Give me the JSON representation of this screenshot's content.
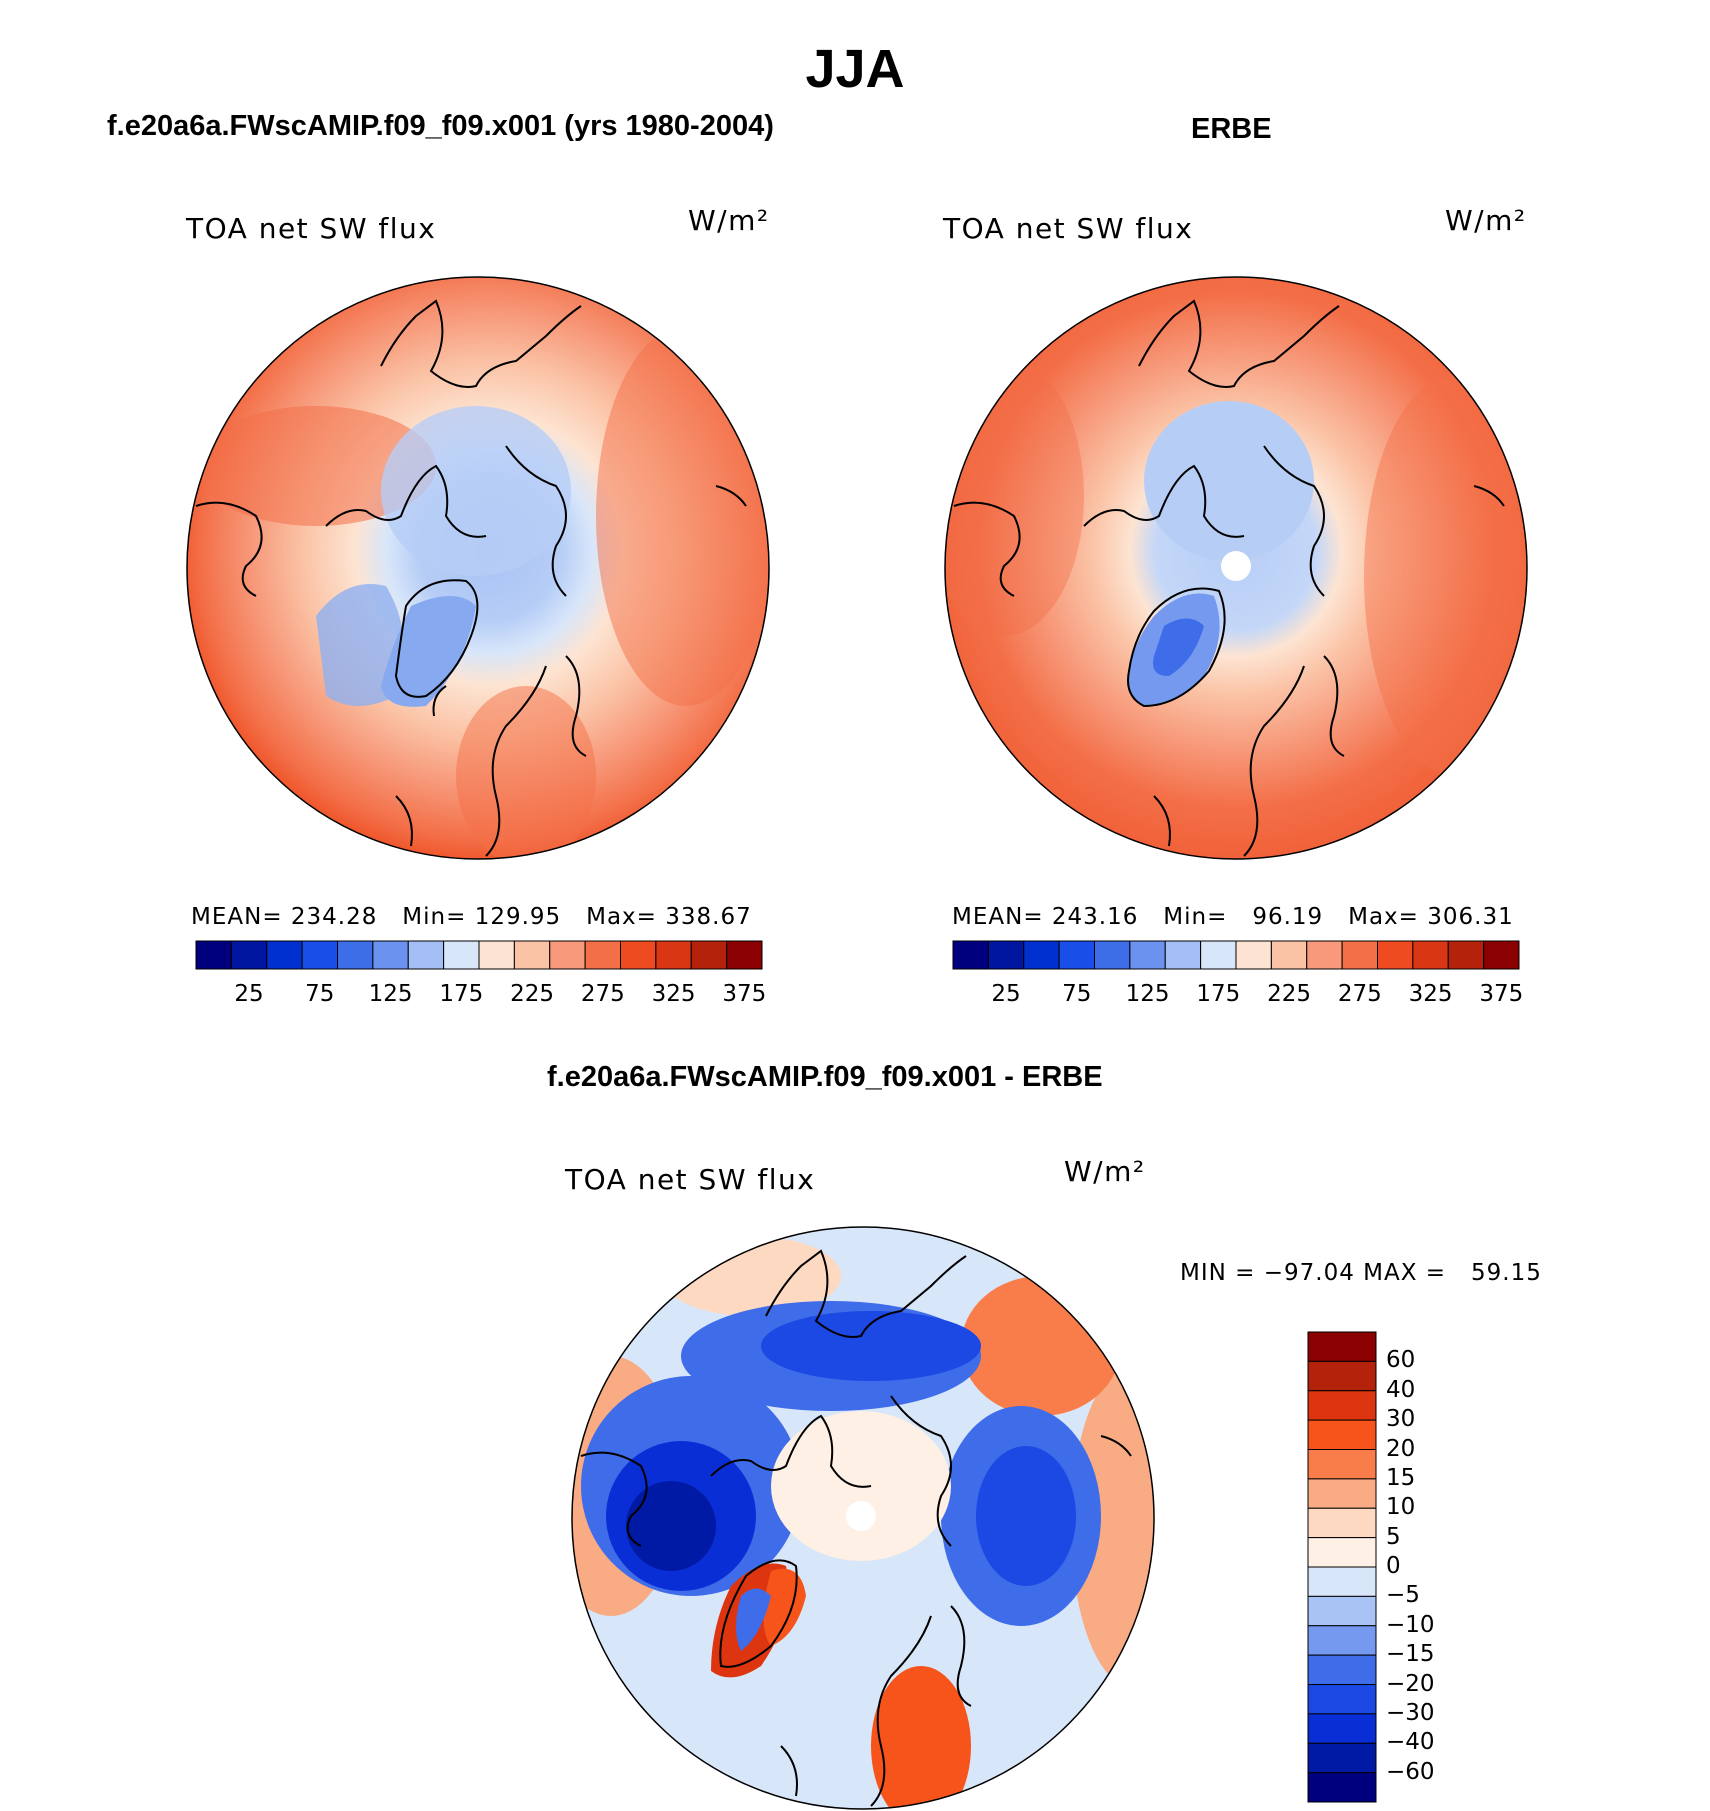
{
  "figure": {
    "title": "JJA",
    "panels": [
      {
        "title": "f.e20a6a.FWscAMIP.f09_f09.x001 (yrs 1980-2004)",
        "variable": "TOA net SW flux",
        "units": "W/m²",
        "stats": "MEAN= 234.28   Min= 129.95   Max= 338.67",
        "mean": 234.28,
        "min": 129.95,
        "max": 338.67
      },
      {
        "title": "ERBE",
        "variable": "TOA net SW flux",
        "units": "W/m²",
        "stats": "MEAN= 243.16   Min=   96.19   Max= 306.31",
        "mean": 243.16,
        "min": 96.19,
        "max": 306.31
      },
      {
        "title": "f.e20a6a.FWscAMIP.f09_f09.x001 - ERBE",
        "variable": "TOA net SW flux",
        "units": "W/m²",
        "stats": "MIN = −97.04 MAX =   59.15",
        "min": -97.04,
        "max": 59.15
      }
    ],
    "colorbar_abs": {
      "tick_labels": [
        "25",
        "75",
        "125",
        "175",
        "225",
        "275",
        "325",
        "375"
      ],
      "colors": [
        "#00007f",
        "#0016a0",
        "#0030d0",
        "#1a4ee8",
        "#3d6ee8",
        "#6b92ef",
        "#a4bff5",
        "#d8e6fa",
        "#fde4d2",
        "#fbc3a6",
        "#f7997a",
        "#f36f48",
        "#ee4c20",
        "#d93614",
        "#b5220c",
        "#8b0000"
      ]
    },
    "colorbar_diff": {
      "tick_labels": [
        "60",
        "40",
        "30",
        "20",
        "15",
        "10",
        "5",
        "0",
        "−5",
        "−10",
        "−15",
        "−20",
        "−30",
        "−40",
        "−60"
      ],
      "colors": [
        "#8b0000",
        "#b5220c",
        "#dd3510",
        "#f7541c",
        "#f87d4a",
        "#f9ab84",
        "#fdd9c2",
        "#fef0e4",
        "#d8e6fa",
        "#a8c3f4",
        "#7499ef",
        "#3f6ce9",
        "#1c48e4",
        "#0a2ed6",
        "#001aa5",
        "#00007f"
      ]
    }
  }
}
